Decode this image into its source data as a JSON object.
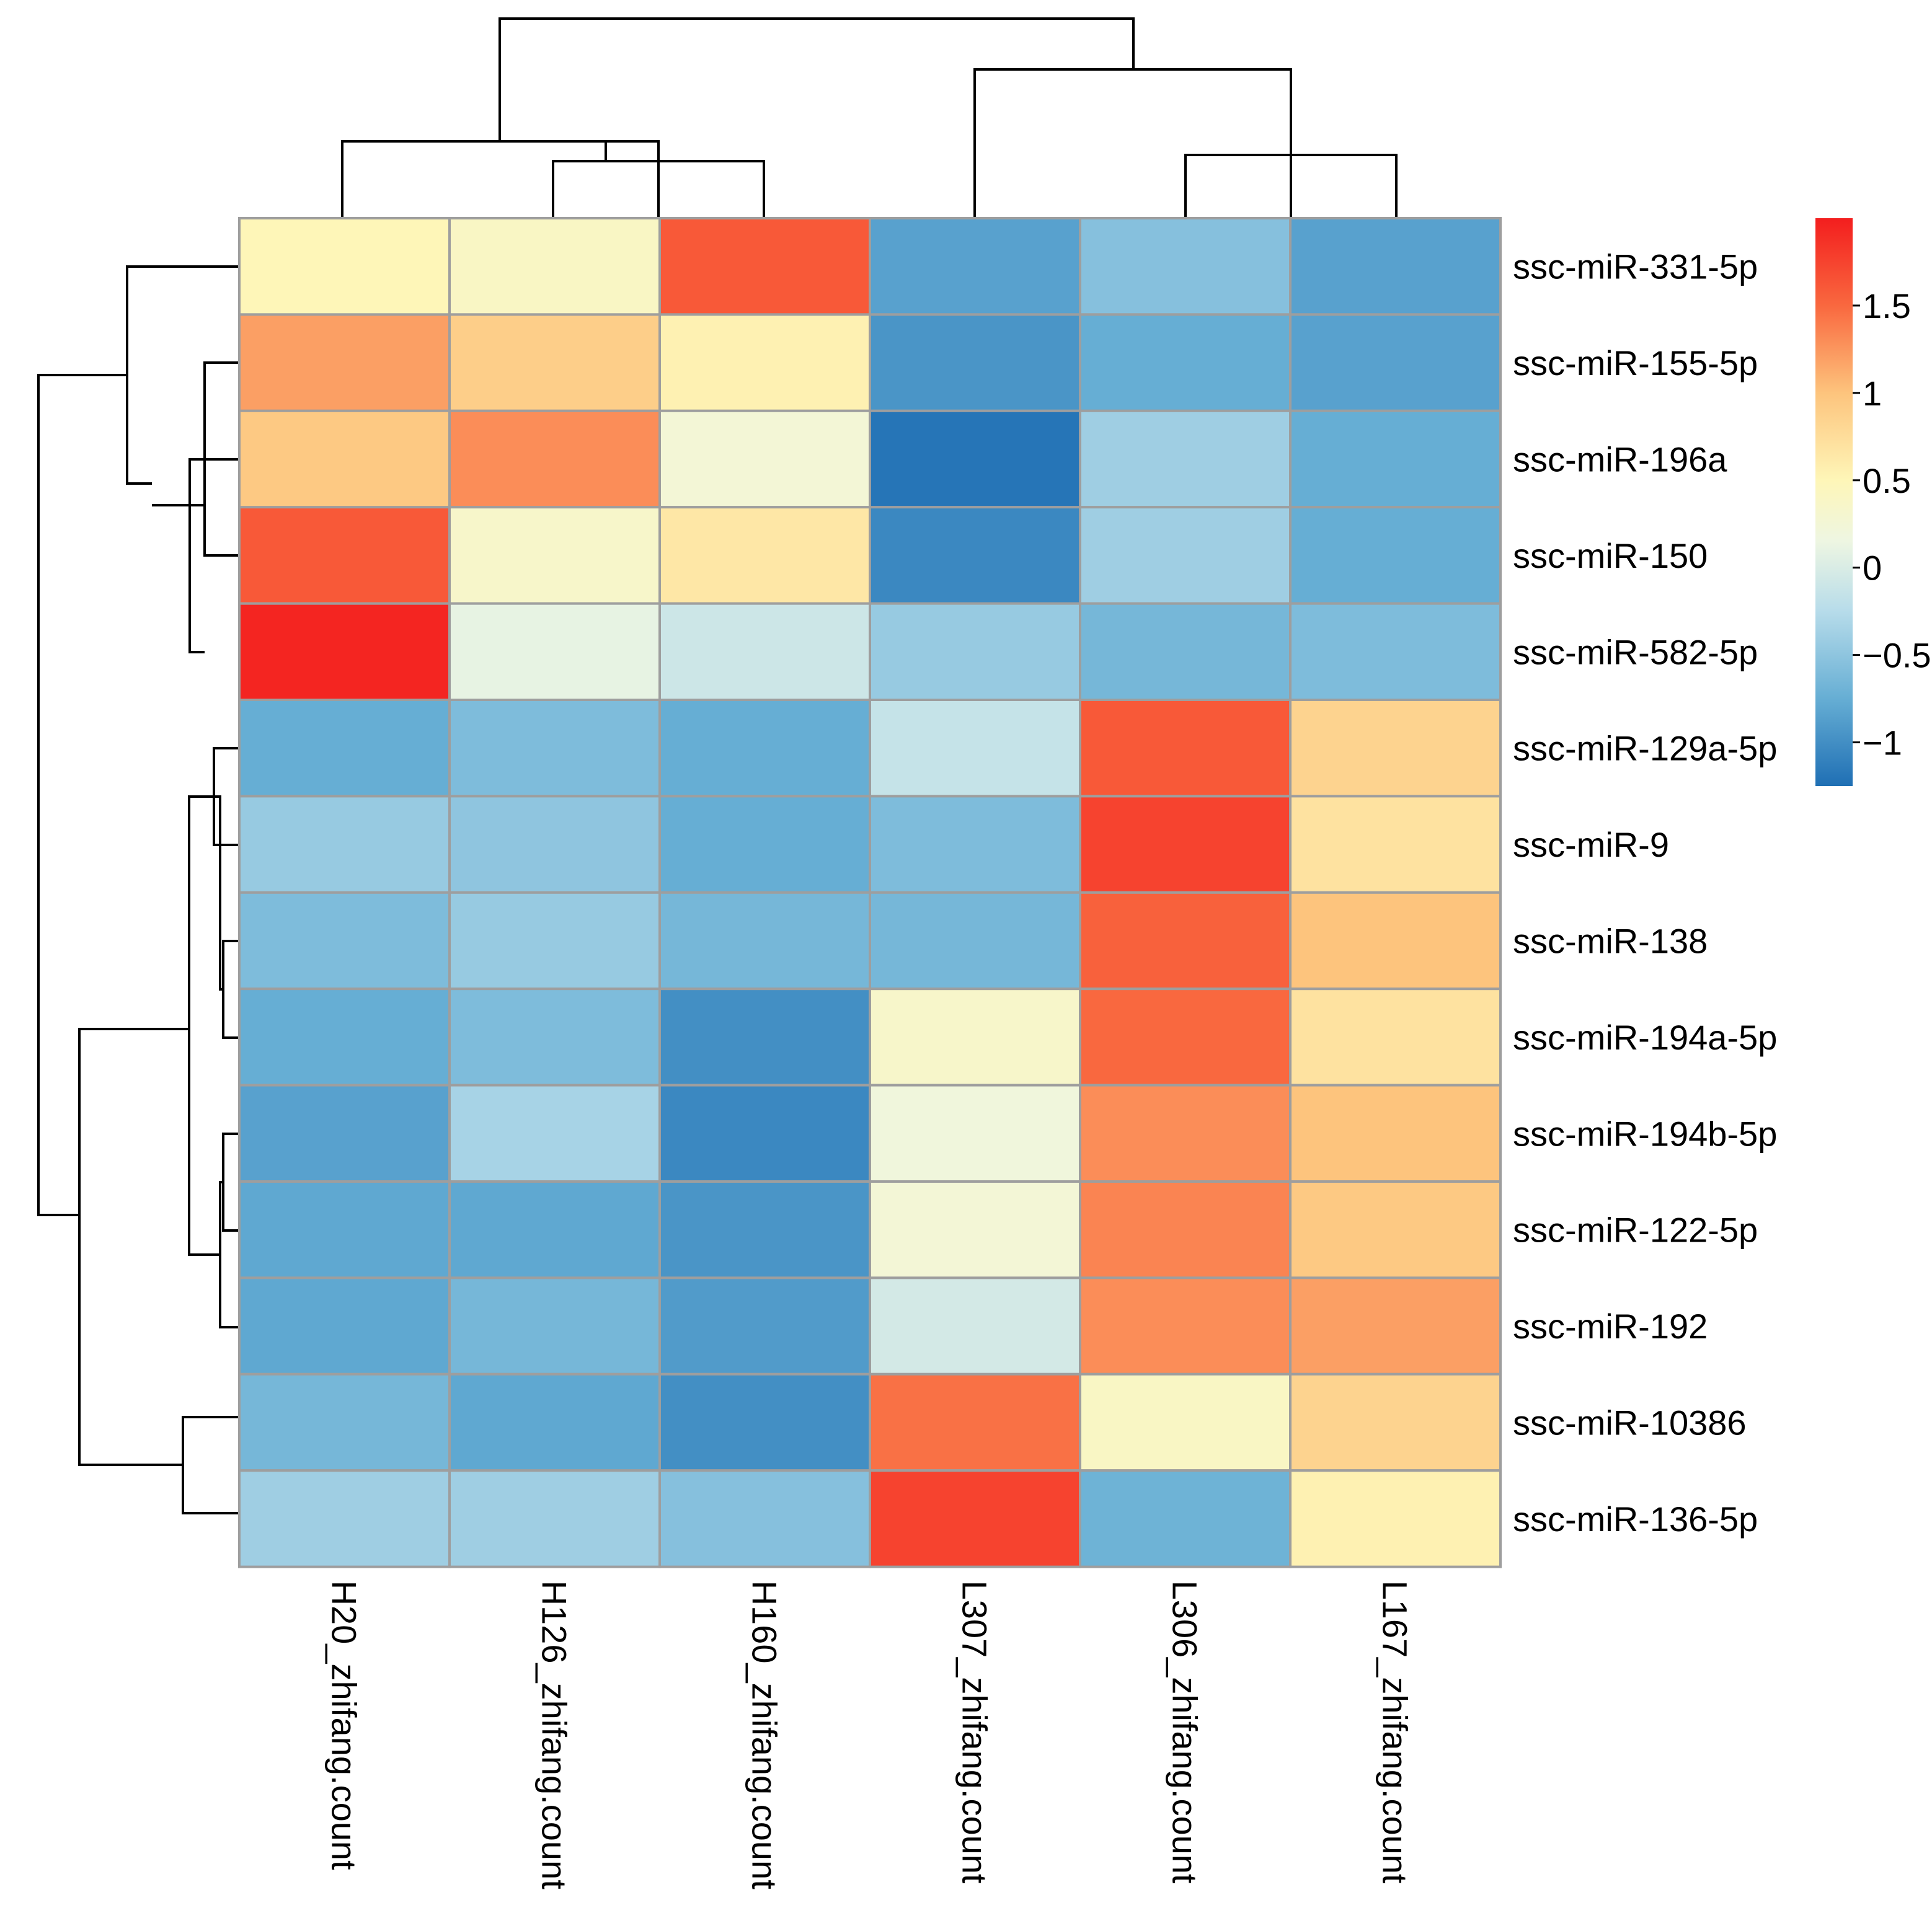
{
  "chart_data": {
    "type": "heatmap",
    "title": "",
    "columns": [
      "H20_zhifang.count",
      "H126_zhifang.count",
      "H160_zhifang.count",
      "L307_zhifang.count",
      "L306_zhifang.count",
      "L167_zhifang.count"
    ],
    "rows": [
      "ssc-miR-331-5p",
      "ssc-miR-155-5p",
      "ssc-miR-196a",
      "ssc-miR-150",
      "ssc-miR-582-5p",
      "ssc-miR-129a-5p",
      "ssc-miR-9",
      "ssc-miR-138",
      "ssc-miR-194a-5p",
      "ssc-miR-194b-5p",
      "ssc-miR-122-5p",
      "ssc-miR-192",
      "ssc-miR-10386",
      "ssc-miR-136-5p"
    ],
    "values": [
      [
        0.5,
        0.4,
        1.6,
        -0.85,
        -0.55,
        -0.85
      ],
      [
        1.2,
        0.9,
        0.55,
        -0.95,
        -0.75,
        -0.85
      ],
      [
        0.95,
        1.3,
        0.25,
        -1.2,
        -0.4,
        -0.75
      ],
      [
        1.6,
        0.35,
        0.65,
        -1.05,
        -0.4,
        -0.75
      ],
      [
        1.95,
        0.1,
        -0.1,
        -0.45,
        -0.65,
        -0.6
      ],
      [
        -0.75,
        -0.6,
        -0.75,
        -0.15,
        1.6,
        0.85
      ],
      [
        -0.45,
        -0.5,
        -0.75,
        -0.6,
        1.75,
        0.7
      ],
      [
        -0.6,
        -0.45,
        -0.65,
        -0.65,
        1.55,
        1.0
      ],
      [
        -0.75,
        -0.6,
        -1.0,
        0.35,
        1.5,
        0.7
      ],
      [
        -0.85,
        -0.35,
        -1.05,
        0.2,
        1.3,
        1.0
      ],
      [
        -0.8,
        -0.8,
        -0.95,
        0.25,
        1.35,
        0.95
      ],
      [
        -0.8,
        -0.65,
        -0.9,
        -0.05,
        1.3,
        1.2
      ],
      [
        -0.65,
        -0.8,
        -1.0,
        1.45,
        0.4,
        0.85
      ],
      [
        -0.4,
        -0.4,
        -0.55,
        1.75,
        -0.7,
        0.55
      ]
    ],
    "color_scale": {
      "min": -1.25,
      "max": 2.0,
      "stops": [
        {
          "value": -1.25,
          "color": "#1f6fb4"
        },
        {
          "value": -0.75,
          "color": "#66aed4"
        },
        {
          "value": -0.25,
          "color": "#b7dcea"
        },
        {
          "value": 0.15,
          "color": "#eef6e2"
        },
        {
          "value": 0.5,
          "color": "#fef6b8"
        },
        {
          "value": 1.0,
          "color": "#fdc47d"
        },
        {
          "value": 1.5,
          "color": "#f9683f"
        },
        {
          "value": 2.0,
          "color": "#f31e1e"
        }
      ]
    },
    "legend": {
      "ticks": [
        1.5,
        1,
        0.5,
        0,
        -0.5,
        -1
      ],
      "tick_labels": [
        "1.5",
        "1",
        "0.5",
        "0",
        "−0.5",
        "−1"
      ],
      "placement": "top-right"
    },
    "column_dendrogram": [
      [
        0,
        3
      ],
      [
        1,
        2
      ],
      [
        1,
        0
      ],
      [
        3,
        5
      ],
      [
        4,
        1
      ],
      [
        5,
        2
      ]
    ],
    "column_dendrogram_note": "merges reference the original columns by index (0-5) or previous merges by 6+k, plus relative merge height",
    "row_dendrogram": "hierarchical clustering of rows; leaves ordered as in rows[]"
  }
}
